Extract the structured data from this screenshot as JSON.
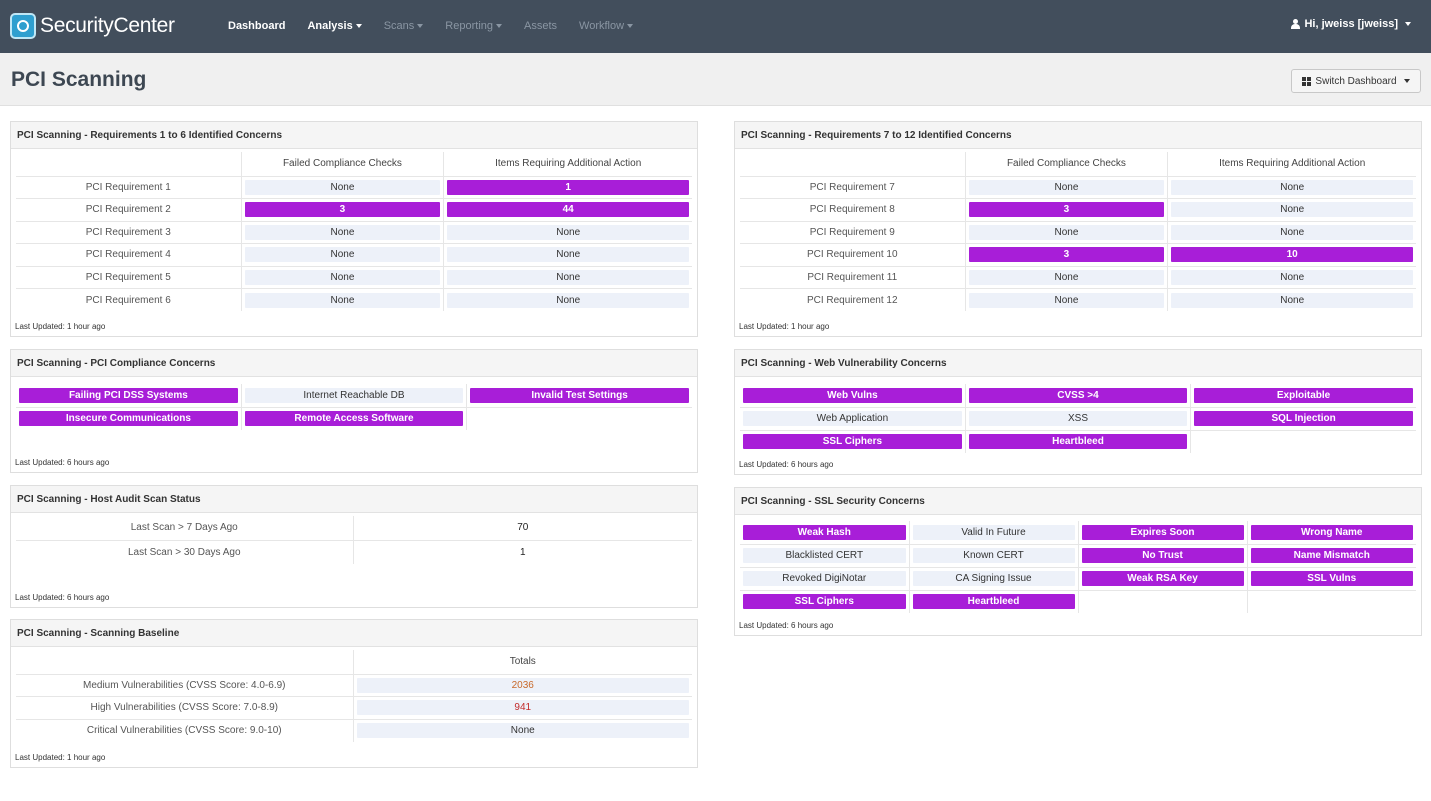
{
  "app": {
    "logo": "SecurityCenter",
    "nav": [
      {
        "label": "Dashboard",
        "active": true,
        "dropdown": false
      },
      {
        "label": "Analysis",
        "active": true,
        "dropdown": true
      },
      {
        "label": "Scans",
        "active": false,
        "dropdown": true
      },
      {
        "label": "Reporting",
        "active": false,
        "dropdown": true
      },
      {
        "label": "Assets",
        "active": false,
        "dropdown": false
      },
      {
        "label": "Workflow",
        "active": false,
        "dropdown": true
      }
    ],
    "user": "Hi, jweiss [jweiss]"
  },
  "page": {
    "title": "PCI Scanning",
    "switch_label": "Switch Dashboard"
  },
  "colors": {
    "highlight": "#a81ed8",
    "none_bg": "#edf1f9",
    "nav_bg": "#424e5c"
  },
  "panels": {
    "req1to6": {
      "title": "PCI Scanning - Requirements 1 to 6 Identified Concerns",
      "col1": "Failed Compliance Checks",
      "col2": "Items Requiring Additional Action",
      "rows": [
        {
          "label": "PCI Requirement 1",
          "failed": "None",
          "items": "1"
        },
        {
          "label": "PCI Requirement 2",
          "failed": "3",
          "items": "44"
        },
        {
          "label": "PCI Requirement 3",
          "failed": "None",
          "items": "None"
        },
        {
          "label": "PCI Requirement 4",
          "failed": "None",
          "items": "None"
        },
        {
          "label": "PCI Requirement 5",
          "failed": "None",
          "items": "None"
        },
        {
          "label": "PCI Requirement 6",
          "failed": "None",
          "items": "None"
        }
      ],
      "updated": "Last Updated: 1 hour ago"
    },
    "req7to12": {
      "title": "PCI Scanning - Requirements 7 to 12 Identified Concerns",
      "col1": "Failed Compliance Checks",
      "col2": "Items Requiring Additional Action",
      "rows": [
        {
          "label": "PCI Requirement 7",
          "failed": "None",
          "items": "None"
        },
        {
          "label": "PCI Requirement 8",
          "failed": "3",
          "items": "None"
        },
        {
          "label": "PCI Requirement 9",
          "failed": "None",
          "items": "None"
        },
        {
          "label": "PCI Requirement 10",
          "failed": "3",
          "items": "10"
        },
        {
          "label": "PCI Requirement 11",
          "failed": "None",
          "items": "None"
        },
        {
          "label": "PCI Requirement 12",
          "failed": "None",
          "items": "None"
        }
      ],
      "updated": "Last Updated: 1 hour ago"
    },
    "compliance": {
      "title": "PCI Scanning - PCI Compliance Concerns",
      "rows": [
        [
          {
            "label": "Failing PCI DSS Systems",
            "hi": true
          },
          {
            "label": "Internet Reachable DB",
            "hi": false
          },
          {
            "label": "Invalid Test Settings",
            "hi": true
          }
        ],
        [
          {
            "label": "Insecure Communications",
            "hi": true
          },
          {
            "label": "Remote Access Software",
            "hi": true
          },
          null
        ]
      ],
      "updated": "Last Updated: 6 hours ago"
    },
    "web": {
      "title": "PCI Scanning - Web Vulnerability Concerns",
      "rows": [
        [
          {
            "label": "Web Vulns",
            "hi": true
          },
          {
            "label": "CVSS >4",
            "hi": true
          },
          {
            "label": "Exploitable",
            "hi": true
          }
        ],
        [
          {
            "label": "Web Application",
            "hi": false
          },
          {
            "label": "XSS",
            "hi": false
          },
          {
            "label": "SQL Injection",
            "hi": true
          }
        ],
        [
          {
            "label": "SSL Ciphers",
            "hi": true
          },
          {
            "label": "Heartbleed",
            "hi": true
          },
          null
        ]
      ],
      "updated": "Last Updated: 6 hours ago"
    },
    "hostaudit": {
      "title": "PCI Scanning - Host Audit Scan Status",
      "rows": [
        {
          "label": "Last Scan > 7 Days Ago",
          "value": "70"
        },
        {
          "label": "Last Scan > 30 Days Ago",
          "value": "1"
        }
      ],
      "updated": "Last Updated: 6 hours ago"
    },
    "ssl": {
      "title": "PCI Scanning - SSL Security Concerns",
      "rows": [
        [
          {
            "label": "Weak Hash",
            "hi": true
          },
          {
            "label": "Valid In Future",
            "hi": false
          },
          {
            "label": "Expires Soon",
            "hi": true
          },
          {
            "label": "Wrong Name",
            "hi": true
          }
        ],
        [
          {
            "label": "Blacklisted CERT",
            "hi": false
          },
          {
            "label": "Known CERT",
            "hi": false
          },
          {
            "label": "No Trust",
            "hi": true
          },
          {
            "label": "Name Mismatch",
            "hi": true
          }
        ],
        [
          {
            "label": "Revoked DigiNotar",
            "hi": false
          },
          {
            "label": "CA Signing Issue",
            "hi": false
          },
          {
            "label": "Weak RSA Key",
            "hi": true
          },
          {
            "label": "SSL Vulns",
            "hi": true
          }
        ],
        [
          {
            "label": "SSL Ciphers",
            "hi": true
          },
          {
            "label": "Heartbleed",
            "hi": true
          },
          null,
          null
        ]
      ],
      "updated": "Last Updated: 6 hours ago"
    },
    "baseline": {
      "title": "PCI Scanning - Scanning Baseline",
      "col": "Totals",
      "rows": [
        {
          "label": "Medium Vulnerabilities (CVSS Score: 4.0-6.9)",
          "value": "2036",
          "style": "orange"
        },
        {
          "label": "High Vulnerabilities (CVSS Score: 7.0-8.9)",
          "value": "941",
          "style": "red"
        },
        {
          "label": "Critical Vulnerabilities (CVSS Score: 9.0-10)",
          "value": "None",
          "style": "none"
        }
      ],
      "updated": "Last Updated: 1 hour ago"
    }
  }
}
